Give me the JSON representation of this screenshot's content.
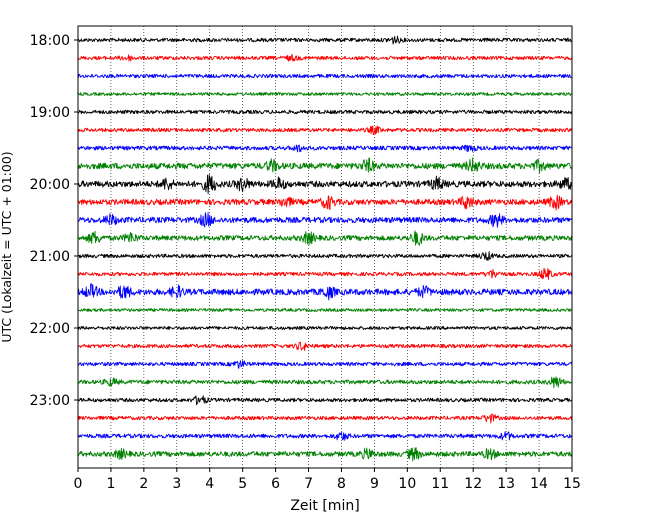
{
  "chart_data": {
    "type": "line",
    "title": "",
    "xlabel": "Zeit  [min]",
    "ylabel": "UTC (Lokalzeit = UTC + 01:00)",
    "xlim": [
      0,
      15
    ],
    "x_ticks": [
      "0",
      "1",
      "2",
      "3",
      "4",
      "5",
      "6",
      "7",
      "8",
      "9",
      "10",
      "11",
      "12",
      "13",
      "14",
      "15"
    ],
    "y_ticks": [
      "18:00",
      "19:00",
      "20:00",
      "21:00",
      "22:00",
      "23:00"
    ],
    "grid": "vertical dotted",
    "series_colors_cycle": [
      "#000000",
      "#ff0000",
      "#0000ff",
      "#008000"
    ],
    "traces": [
      {
        "start": "18:00",
        "color": "#000000",
        "amplitude": 0.18,
        "bursts": [
          {
            "x": 9.6,
            "a": 0.3
          }
        ]
      },
      {
        "start": "18:15",
        "color": "#ff0000",
        "amplitude": 0.18,
        "bursts": [
          {
            "x": 1.5,
            "a": 0.2
          },
          {
            "x": 6.5,
            "a": 0.2
          }
        ]
      },
      {
        "start": "18:30",
        "color": "#0000ff",
        "amplitude": 0.18,
        "bursts": []
      },
      {
        "start": "18:45",
        "color": "#008000",
        "amplitude": 0.15,
        "bursts": []
      },
      {
        "start": "19:00",
        "color": "#000000",
        "amplitude": 0.18,
        "bursts": []
      },
      {
        "start": "19:15",
        "color": "#ff0000",
        "amplitude": 0.18,
        "bursts": [
          {
            "x": 9.0,
            "a": 0.3
          }
        ]
      },
      {
        "start": "19:30",
        "color": "#0000ff",
        "amplitude": 0.2,
        "bursts": [
          {
            "x": 6.7,
            "a": 0.25
          },
          {
            "x": 11.9,
            "a": 0.25
          }
        ]
      },
      {
        "start": "19:45",
        "color": "#008000",
        "amplitude": 0.3,
        "bursts": [
          {
            "x": 5.9,
            "a": 0.45
          },
          {
            "x": 8.8,
            "a": 0.55
          },
          {
            "x": 12.0,
            "a": 0.55
          },
          {
            "x": 14.0,
            "a": 0.4
          }
        ]
      },
      {
        "start": "20:00",
        "color": "#000000",
        "amplitude": 0.3,
        "bursts": [
          {
            "x": 2.7,
            "a": 0.45
          },
          {
            "x": 4.0,
            "a": 0.8
          },
          {
            "x": 5.0,
            "a": 0.55
          },
          {
            "x": 6.1,
            "a": 0.45
          },
          {
            "x": 10.9,
            "a": 0.5
          },
          {
            "x": 14.8,
            "a": 0.45
          }
        ]
      },
      {
        "start": "20:15",
        "color": "#ff0000",
        "amplitude": 0.28,
        "bursts": [
          {
            "x": 6.3,
            "a": 0.4
          },
          {
            "x": 7.6,
            "a": 0.55
          },
          {
            "x": 11.8,
            "a": 0.55
          },
          {
            "x": 14.5,
            "a": 0.55
          }
        ]
      },
      {
        "start": "20:30",
        "color": "#0000ff",
        "amplitude": 0.28,
        "bursts": [
          {
            "x": 1.0,
            "a": 0.4
          },
          {
            "x": 3.9,
            "a": 0.55
          },
          {
            "x": 12.7,
            "a": 0.55
          }
        ]
      },
      {
        "start": "20:45",
        "color": "#008000",
        "amplitude": 0.25,
        "bursts": [
          {
            "x": 0.5,
            "a": 0.5
          },
          {
            "x": 1.6,
            "a": 0.4
          },
          {
            "x": 7.0,
            "a": 0.5
          },
          {
            "x": 10.3,
            "a": 0.6
          }
        ]
      },
      {
        "start": "21:00",
        "color": "#000000",
        "amplitude": 0.18,
        "bursts": [
          {
            "x": 12.4,
            "a": 0.35
          }
        ]
      },
      {
        "start": "21:15",
        "color": "#ff0000",
        "amplitude": 0.18,
        "bursts": [
          {
            "x": 12.6,
            "a": 0.35
          },
          {
            "x": 14.2,
            "a": 0.5
          }
        ]
      },
      {
        "start": "21:30",
        "color": "#0000ff",
        "amplitude": 0.3,
        "bursts": [
          {
            "x": 0.4,
            "a": 0.55
          },
          {
            "x": 1.4,
            "a": 0.55
          },
          {
            "x": 3.0,
            "a": 0.45
          },
          {
            "x": 7.6,
            "a": 0.5
          },
          {
            "x": 10.5,
            "a": 0.4
          }
        ]
      },
      {
        "start": "21:45",
        "color": "#008000",
        "amplitude": 0.15,
        "bursts": []
      },
      {
        "start": "22:00",
        "color": "#000000",
        "amplitude": 0.16,
        "bursts": []
      },
      {
        "start": "22:15",
        "color": "#ff0000",
        "amplitude": 0.18,
        "bursts": [
          {
            "x": 6.8,
            "a": 0.35
          }
        ]
      },
      {
        "start": "22:30",
        "color": "#0000ff",
        "amplitude": 0.18,
        "bursts": [
          {
            "x": 4.9,
            "a": 0.3
          }
        ]
      },
      {
        "start": "22:45",
        "color": "#008000",
        "amplitude": 0.2,
        "bursts": [
          {
            "x": 1.0,
            "a": 0.3
          },
          {
            "x": 14.5,
            "a": 0.5
          }
        ]
      },
      {
        "start": "23:00",
        "color": "#000000",
        "amplitude": 0.18,
        "bursts": [
          {
            "x": 3.7,
            "a": 0.4
          }
        ]
      },
      {
        "start": "23:15",
        "color": "#ff0000",
        "amplitude": 0.18,
        "bursts": [
          {
            "x": 12.5,
            "a": 0.35
          }
        ]
      },
      {
        "start": "23:30",
        "color": "#0000ff",
        "amplitude": 0.2,
        "bursts": [
          {
            "x": 8.0,
            "a": 0.35
          },
          {
            "x": 13.0,
            "a": 0.3
          }
        ]
      },
      {
        "start": "23:45",
        "color": "#008000",
        "amplitude": 0.25,
        "bursts": [
          {
            "x": 1.3,
            "a": 0.35
          },
          {
            "x": 8.8,
            "a": 0.4
          },
          {
            "x": 10.2,
            "a": 0.5
          },
          {
            "x": 12.5,
            "a": 0.4
          }
        ]
      }
    ]
  }
}
